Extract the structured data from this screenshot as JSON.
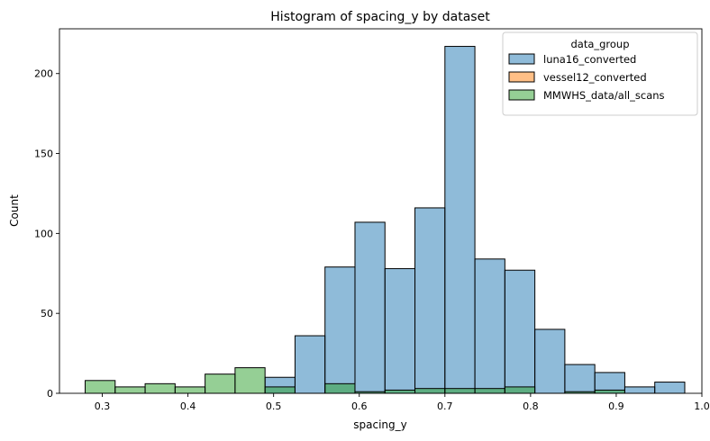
{
  "chart_data": {
    "type": "bar",
    "title": "Histogram of spacing_y by dataset",
    "xlabel": "spacing_y",
    "ylabel": "Count",
    "xlim": [
      0.25,
      1.0
    ],
    "ylim": [
      0,
      228
    ],
    "xticks": [
      "0.3",
      "0.4",
      "0.5",
      "0.6",
      "0.7",
      "0.8",
      "0.9",
      "1.0"
    ],
    "xtick_values": [
      0.3,
      0.4,
      0.5,
      0.6,
      0.7,
      0.8,
      0.9,
      1.0
    ],
    "yticks": [
      "0",
      "50",
      "100",
      "150",
      "200"
    ],
    "ytick_values": [
      0,
      50,
      100,
      150,
      200
    ],
    "bin_edges": [
      0.28,
      0.315,
      0.35,
      0.385,
      0.42,
      0.455,
      0.49,
      0.525,
      0.56,
      0.595,
      0.63,
      0.665,
      0.7,
      0.735,
      0.77,
      0.805,
      0.84,
      0.875,
      0.91,
      0.945,
      0.98
    ],
    "legend": {
      "title": "data_group",
      "position": "upper right"
    },
    "series": [
      {
        "name": "luna16_converted",
        "color": "#1f77b4",
        "values": [
          0,
          0,
          0,
          0,
          0,
          0,
          10,
          36,
          79,
          107,
          78,
          116,
          217,
          84,
          77,
          40,
          18,
          13,
          4,
          7
        ]
      },
      {
        "name": "vessel12_converted",
        "color": "#ff7f0e",
        "values": [
          0,
          0,
          0,
          0,
          0,
          0,
          0,
          0,
          0,
          0,
          0,
          0,
          0,
          0,
          0,
          0,
          0,
          0,
          0,
          0
        ]
      },
      {
        "name": "MMWHS_data/all_scans",
        "color": "#2ca02c",
        "values": [
          8,
          4,
          6,
          4,
          12,
          16,
          4,
          0,
          6,
          1,
          2,
          3,
          3,
          3,
          4,
          0,
          1,
          2,
          0,
          0
        ]
      }
    ]
  }
}
